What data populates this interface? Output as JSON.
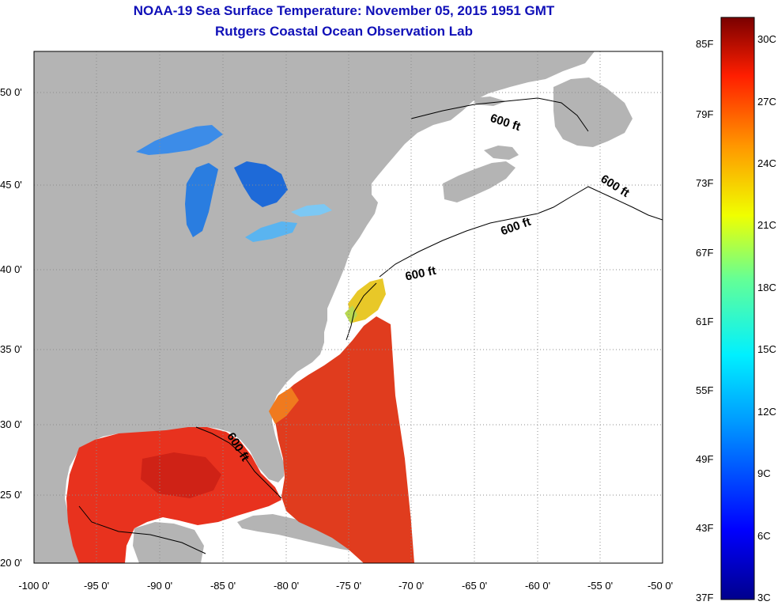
{
  "title": "NOAA-19 Sea Surface Temperature:  November 05, 2015 1951 GMT",
  "subtitle": "Rutgers Coastal Ocean Observation Lab",
  "lat_labels": [
    "50 0'",
    "45 0'",
    "40 0'",
    "35 0'",
    "30 0'",
    "25 0'",
    "20 0'"
  ],
  "lon_labels": [
    "-100 0'",
    "-95 0'",
    "-90 0'",
    "-85 0'",
    "-80 0'",
    "-75 0'",
    "-70 0'",
    "-65 0'",
    "-60 0'",
    "-55 0'",
    "-50 0'"
  ],
  "isobath_labels": [
    "600 ft",
    "600 ft",
    "600 ft",
    "600 ft",
    "600 ft"
  ],
  "colorbar": {
    "fahrenheit": [
      "85F",
      "79F",
      "73F",
      "67F",
      "61F",
      "55F",
      "49F",
      "43F",
      "37F"
    ],
    "celsius": [
      "30C",
      "27C",
      "24C",
      "21C",
      "18C",
      "15C",
      "12C",
      "9C",
      "6C",
      "3C"
    ]
  },
  "colors": {
    "land": "#b4b4b4",
    "title": "#1010b8",
    "warm": "#e8321e",
    "lake": "#2a7de0"
  }
}
